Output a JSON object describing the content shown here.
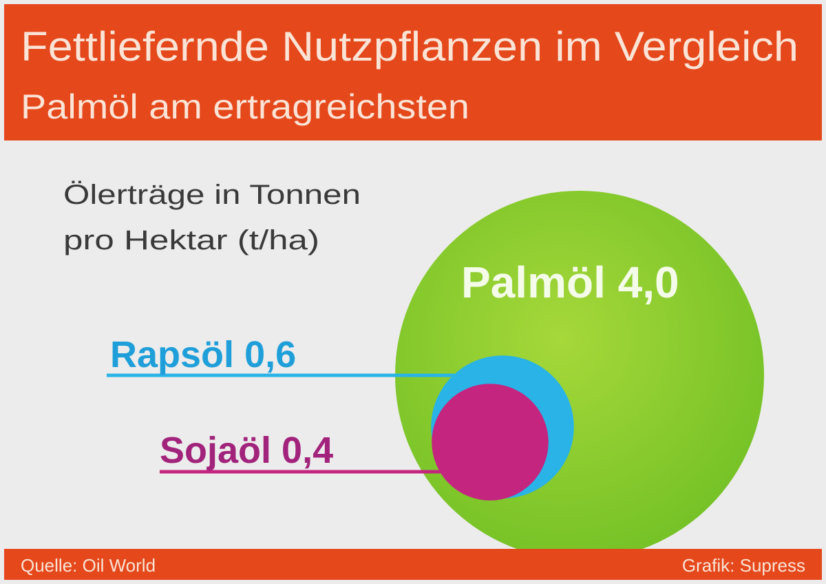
{
  "chart_data": {
    "type": "bubble",
    "title": "Fettliefernde Nutzpflanzen im Vergleich",
    "subtitle": "Palmöl am ertragreichsten",
    "annotation": [
      "Ölerträge in Tonnen",
      "pro Hektar (t/ha)"
    ],
    "categories": [
      "Palmöl",
      "Rapsöl",
      "Sojaöl"
    ],
    "values": [
      4.0,
      0.6,
      0.4
    ],
    "value_labels": [
      "4,0",
      "0,6",
      "0,4"
    ],
    "colors": [
      "#8fcc2f",
      "#2ab3e6",
      "#c4257f"
    ],
    "source": "Quelle: Oil World",
    "credit": "Grafik: Supress"
  }
}
